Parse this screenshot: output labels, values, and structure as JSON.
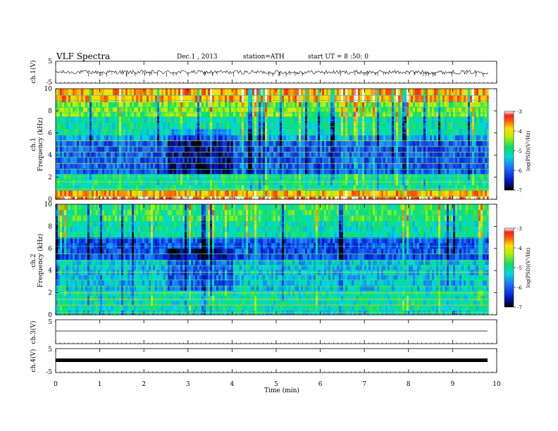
{
  "header": {
    "title": "VLF Spectra",
    "date": "Dec.1 , 2013",
    "station": "station=ATH",
    "start": "start UT = 8 :50: 0"
  },
  "chart_data": [
    {
      "type": "line",
      "panel": "ch1",
      "ylabel": "ch.1(V)",
      "ylim": [
        -5,
        5
      ],
      "yticks": [
        "5",
        "-5"
      ],
      "baseline": 0,
      "trace_extent": [
        -2,
        2
      ]
    },
    {
      "type": "heatmap",
      "panel": "spectrogram-ch1",
      "ylabel_lines": [
        "ch.1",
        "Frequency (kHz)"
      ],
      "ylim": [
        0,
        10
      ],
      "yticks": [
        "0",
        "2",
        "4",
        "6",
        "8",
        "10"
      ],
      "colorbar": {
        "label": "log(PSD)(V²/Hz)",
        "range": [
          -7,
          -3
        ],
        "ticks": [
          "-3",
          "-4",
          "-5",
          "-6",
          "-7"
        ]
      },
      "bands_kHz": [
        {
          "from": 0.0,
          "to": 0.3,
          "logPSD": -3.2
        },
        {
          "from": 0.3,
          "to": 0.8,
          "logPSD": -3.8
        },
        {
          "from": 0.8,
          "to": 2.3,
          "logPSD": -5.0
        },
        {
          "from": 2.3,
          "to": 5.3,
          "logPSD": -6.0
        },
        {
          "from": 5.3,
          "to": 5.8,
          "logPSD": -5.6
        },
        {
          "from": 5.8,
          "to": 7.5,
          "logPSD": -5.1
        },
        {
          "from": 7.5,
          "to": 8.8,
          "logPSD": -4.5
        },
        {
          "from": 8.8,
          "to": 10.0,
          "logPSD": -3.7
        }
      ],
      "quiet_window_min": [
        2.5,
        4.0
      ]
    },
    {
      "type": "heatmap",
      "panel": "spectrogram-ch2",
      "ylabel_lines": [
        "ch.2",
        "Frequency (kHz)"
      ],
      "ylim": [
        0,
        10
      ],
      "yticks": [
        "0",
        "2",
        "4",
        "6",
        "8",
        "10"
      ],
      "colorbar": {
        "label": "log(PSD)(V²/Hz)",
        "range": [
          -7,
          -3
        ],
        "ticks": [
          "-3",
          "-4",
          "-5",
          "-6",
          "-7"
        ]
      },
      "bands_kHz": [
        {
          "from": 0.0,
          "to": 0.4,
          "logPSD": -5.3
        },
        {
          "from": 0.4,
          "to": 2.2,
          "logPSD": -5.1
        },
        {
          "from": 2.2,
          "to": 5.0,
          "logPSD": -5.4
        },
        {
          "from": 5.0,
          "to": 7.0,
          "logPSD": -6.1
        },
        {
          "from": 7.0,
          "to": 8.5,
          "logPSD": -5.1
        },
        {
          "from": 8.5,
          "to": 10.0,
          "logPSD": -4.8
        }
      ],
      "quiet_window_min": [
        2.5,
        4.0
      ]
    },
    {
      "type": "line",
      "panel": "ch3",
      "ylabel": "ch.3(V)",
      "ylim": [
        -5,
        5
      ],
      "yticks": [
        "5",
        "-5"
      ],
      "baseline": 0
    },
    {
      "type": "line",
      "panel": "ch4",
      "ylabel": "ch.4(V)",
      "ylim": [
        -5,
        5
      ],
      "yticks": [
        "5",
        "-5"
      ],
      "baseline": 0
    }
  ],
  "xaxis": {
    "label": "Time (min)",
    "xlim": [
      0,
      10
    ],
    "data_end": 9.82,
    "ticks": [
      "0",
      "1",
      "2",
      "3",
      "4",
      "5",
      "6",
      "7",
      "8",
      "9",
      "10"
    ]
  }
}
